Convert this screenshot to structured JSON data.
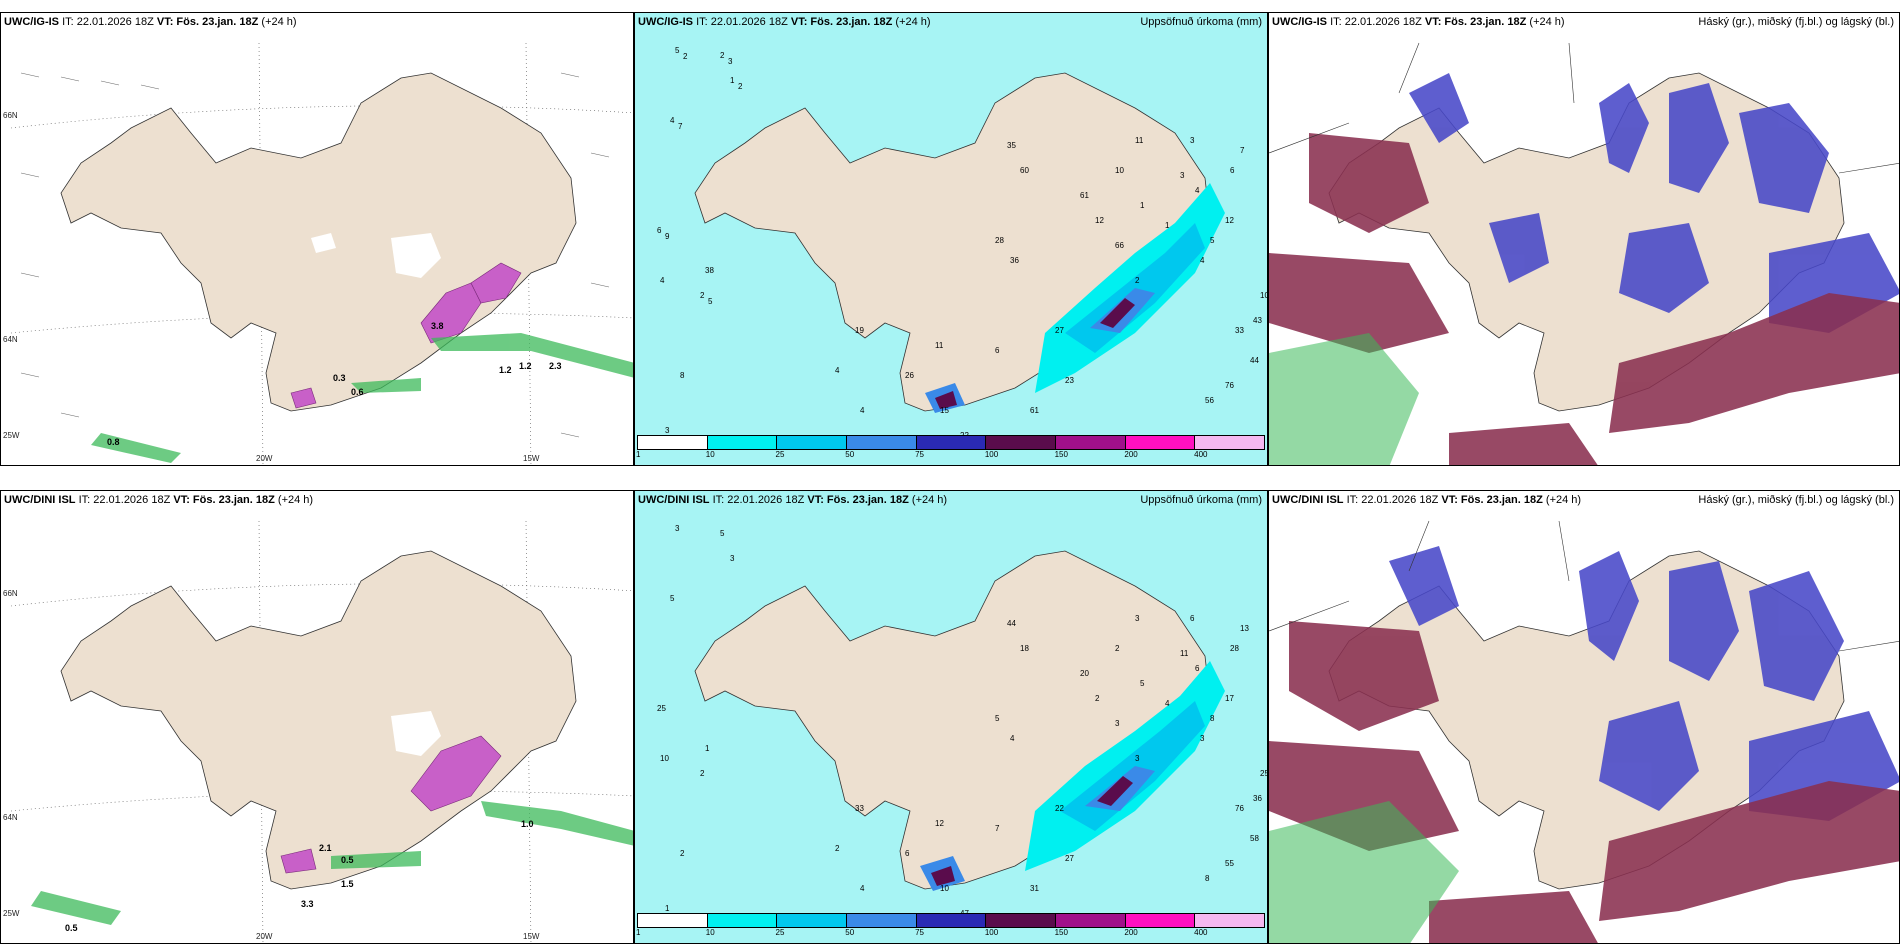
{
  "rows": [
    {
      "model": "UWC/IG-IS",
      "init": "IT: 22.01.2026 18Z",
      "valid": "VT: Fös. 23.jan. 18Z",
      "lead": "(+24 h)",
      "precip_title": "Uppsöfnuð úrkoma (mm)",
      "cloud_title": "Háský (gr.), miðský (fj.bl.) og lágský (bl.)",
      "lon_labels": [
        "20W",
        "15W"
      ],
      "lat_labels": [
        "66N",
        "64N",
        "25W"
      ],
      "wind_values": [
        "0.3",
        "0.6",
        "0.8",
        "1.2",
        "1.2",
        "2.3",
        "3.8"
      ],
      "precip_numbers": [
        "5",
        "2",
        "1",
        "4",
        "6",
        "2",
        "4",
        "38",
        "4",
        "4",
        "3",
        "8",
        "19",
        "26",
        "11",
        "15",
        "8",
        "6",
        "27",
        "23",
        "61",
        "22",
        "25",
        "3",
        "35",
        "60",
        "61",
        "12",
        "10",
        "11",
        "1",
        "1",
        "3",
        "3",
        "4",
        "4",
        "5",
        "12",
        "6",
        "7",
        "10",
        "43",
        "33",
        "44",
        "76",
        "56",
        "28",
        "36",
        "66",
        "2",
        "2",
        "3",
        "2",
        "7",
        "9",
        "5"
      ]
    },
    {
      "model": "UWC/DINI ISL",
      "init": "IT: 22.01.2026 18Z",
      "valid": "VT: Fös. 23.jan. 18Z",
      "lead": "(+24 h)",
      "precip_title": "Uppsöfnuð úrkoma (mm)",
      "cloud_title": "Háský (gr.), miðský (fj.bl.) og lágský (bl.)",
      "lon_labels": [
        "20W",
        "15W"
      ],
      "lat_labels": [
        "66N",
        "64N",
        "25W"
      ],
      "wind_values": [
        "2.1",
        "0.5",
        "1.5",
        "0.5",
        "3.3",
        "1.0"
      ],
      "precip_numbers": [
        "3",
        "5",
        "3",
        "5",
        "25",
        "2",
        "10",
        "1",
        "2",
        "4",
        "1",
        "2",
        "33",
        "6",
        "12",
        "10",
        "14",
        "7",
        "22",
        "27",
        "31",
        "47",
        "61",
        "32",
        "44",
        "18",
        "20",
        "2",
        "2",
        "3",
        "5",
        "4",
        "11",
        "6",
        "6",
        "3",
        "8",
        "17",
        "28",
        "13",
        "25",
        "36",
        "76",
        "58",
        "55",
        "8",
        "5",
        "4",
        "3",
        "3"
      ]
    }
  ],
  "legend": {
    "ticks": [
      "1",
      "10",
      "25",
      "50",
      "75",
      "100",
      "150",
      "200",
      "400"
    ],
    "colors": [
      "#ffffff",
      "#00f0f0",
      "#00c8ee",
      "#3a8ae8",
      "#2a2ab4",
      "#5a0c4c",
      "#a0108a",
      "#ff10c0",
      "#f5b8f0"
    ]
  },
  "colors": {
    "land": "#ede0d0",
    "sea_precip": "#a7f4f4",
    "high_cloud": "#8a8a8a",
    "mid_cloud": "#8a3050",
    "low_cloud": "#4848c8",
    "green_precip": "#3cba5a",
    "purple_precip": "#c860c8"
  }
}
